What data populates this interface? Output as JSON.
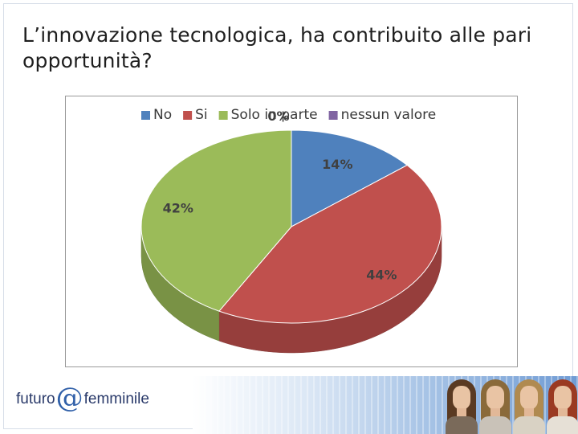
{
  "slide": {
    "title": "L’innovazione tecnologica, ha contribuito alle pari opportunità?"
  },
  "chart_data": {
    "type": "pie",
    "title": "",
    "legend_position": "top",
    "three_d": true,
    "series": [
      {
        "name": "No",
        "value": 14,
        "label": "14%",
        "color": "#4f81bd"
      },
      {
        "name": "Si",
        "value": 44,
        "label": "44%",
        "color": "#c0504d"
      },
      {
        "name": "Solo in parte",
        "value": 42,
        "label": "42%",
        "color": "#9bbb59"
      },
      {
        "name": "nessun valore",
        "value": 0,
        "label": "0%",
        "color": "#8064a2"
      }
    ]
  },
  "footer": {
    "logo_left": "futuro",
    "logo_at": "@",
    "logo_right": "femminile"
  }
}
